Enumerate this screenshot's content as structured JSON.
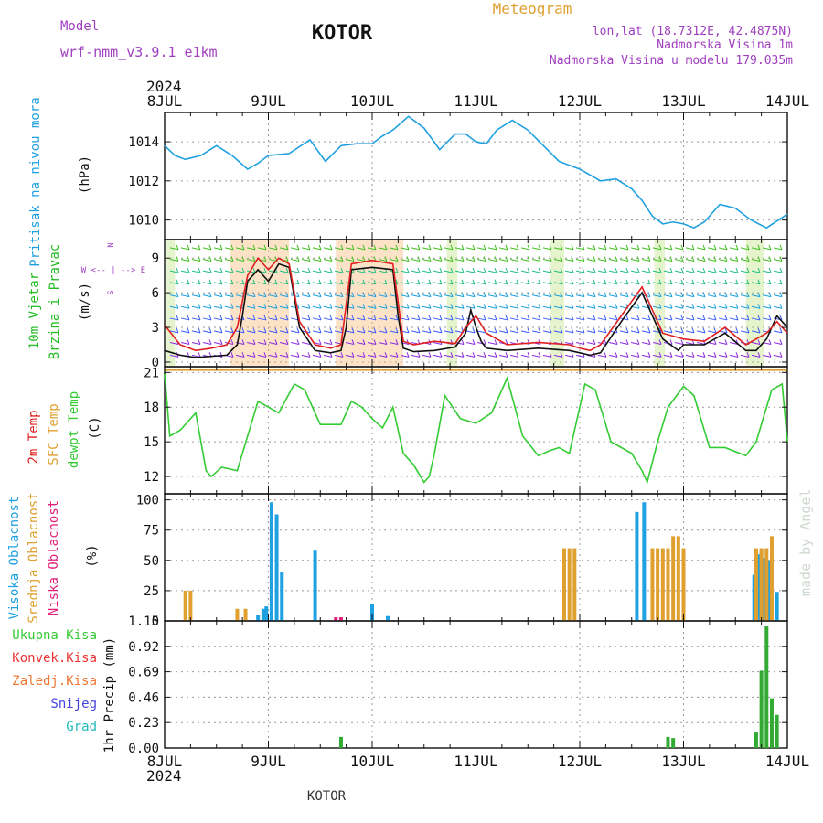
{
  "header": {
    "model_label": "Model",
    "model_name": "wrf-nmm_v3.9.1  e1km",
    "city": "KOTOR",
    "title": "Meteogram",
    "coords": "lon,lat (18.7312E, 42.4875N)",
    "altitude": "Nadmorska Visina 1m",
    "model_altitude": "Nadmorska Visina u modelu 179.035m",
    "year_top": "2024",
    "year_bottom": "2024",
    "footer_city": "KOTOR",
    "credit": "made by Angel"
  },
  "days": [
    "8JUL",
    "9JUL",
    "10JUL",
    "11JUL",
    "12JUL",
    "13JUL",
    "14JUL"
  ],
  "colors": {
    "pressure": "#1fa0e0",
    "wind_label": "#22bb22",
    "wind_ms": "#111111",
    "temp_2m": "#e02020",
    "temp_sfc": "#e0a030",
    "dewpoint": "#33cc33",
    "cloud_high": "#1fa0e0",
    "cloud_mid": "#e0a030",
    "cloud_low": "#e0207a",
    "precip_total": "#33aa33",
    "precip_conv": "#ee3333",
    "precip_frozen": "#ee7733",
    "snow": "#4444dd",
    "hail": "#22bbbb",
    "header_purple": "#a040c0",
    "header_orange": "#e0a030"
  },
  "chart_data": [
    {
      "type": "line",
      "panel": "pressure",
      "ylabel": [
        "Pritisak na nivou mora",
        "(hPa)"
      ],
      "ylim": [
        1009,
        1015.5
      ],
      "yticks": [
        1010,
        1012,
        1014
      ],
      "grid": true,
      "series": [
        {
          "color_key": "pressure",
          "x": [
            0,
            0.1,
            0.2,
            0.35,
            0.5,
            0.65,
            0.8,
            0.9,
            1.0,
            1.2,
            1.4,
            1.55,
            1.7,
            1.85,
            2.0,
            2.1,
            2.2,
            2.35,
            2.5,
            2.65,
            2.8,
            2.9,
            3.0,
            3.1,
            3.2,
            3.35,
            3.5,
            3.65,
            3.8,
            4.0,
            4.2,
            4.35,
            4.5,
            4.6,
            4.7,
            4.8,
            4.9,
            5.0,
            5.1,
            5.2,
            5.35,
            5.5,
            5.65,
            5.8,
            6.0
          ],
          "y": [
            1013.8,
            1013.3,
            1013.1,
            1013.3,
            1013.8,
            1013.3,
            1012.6,
            1012.9,
            1013.3,
            1013.4,
            1014.1,
            1013.0,
            1013.8,
            1013.9,
            1013.9,
            1014.3,
            1014.6,
            1015.3,
            1014.7,
            1013.6,
            1014.4,
            1014.4,
            1014.0,
            1013.9,
            1014.6,
            1015.1,
            1014.6,
            1013.8,
            1013.0,
            1012.6,
            1012.0,
            1012.1,
            1011.6,
            1011.0,
            1010.2,
            1009.8,
            1009.9,
            1009.8,
            1009.6,
            1009.9,
            1010.8,
            1010.6,
            1010.0,
            1009.6,
            1010.3
          ]
        }
      ]
    },
    {
      "type": "line",
      "panel": "wind",
      "ylabel": [
        "10m Vjetar",
        "Brzina i Pravac",
        "(m/s)"
      ],
      "direction_key": [
        "N",
        "W  <-- | -->  E",
        "S"
      ],
      "ylim": [
        -0.4,
        10.6
      ],
      "yticks": [
        0,
        3,
        6,
        9
      ],
      "grid": true,
      "series": [
        {
          "color_key": "wind_ms",
          "x": [
            0,
            0.15,
            0.3,
            0.45,
            0.6,
            0.7,
            0.75,
            0.8,
            0.9,
            1.0,
            1.1,
            1.2,
            1.3,
            1.45,
            1.6,
            1.7,
            1.75,
            1.8,
            2.0,
            2.2,
            2.25,
            2.3,
            2.4,
            2.6,
            2.8,
            2.9,
            2.95,
            3.0,
            3.05,
            3.1,
            3.3,
            3.6,
            3.9,
            4.0,
            4.1,
            4.2,
            4.4,
            4.6,
            4.8,
            4.95,
            5.0,
            5.2,
            5.4,
            5.6,
            5.7,
            5.8,
            5.9,
            6.0
          ],
          "y": [
            1.0,
            0.6,
            0.4,
            0.5,
            0.6,
            1.5,
            4.0,
            7.0,
            8.0,
            7.0,
            8.5,
            8.2,
            3.0,
            1.0,
            0.8,
            1.0,
            3.0,
            8.0,
            8.2,
            8.0,
            4.0,
            1.2,
            0.9,
            1.0,
            1.3,
            2.5,
            4.5,
            3.0,
            1.8,
            1.2,
            1.0,
            1.2,
            1.0,
            0.8,
            0.6,
            0.8,
            3.5,
            6.0,
            2.0,
            1.0,
            1.5,
            1.5,
            2.5,
            1.0,
            1.0,
            2.0,
            4.0,
            3.0
          ]
        },
        {
          "color_key": "temp_2m",
          "x": [
            0,
            0.15,
            0.3,
            0.45,
            0.6,
            0.7,
            0.8,
            0.9,
            1.0,
            1.1,
            1.2,
            1.3,
            1.45,
            1.6,
            1.7,
            1.8,
            2.0,
            2.2,
            2.3,
            2.4,
            2.6,
            2.8,
            2.9,
            3.0,
            3.1,
            3.3,
            3.6,
            3.9,
            4.0,
            4.1,
            4.2,
            4.4,
            4.6,
            4.8,
            5.0,
            5.2,
            5.4,
            5.6,
            5.8,
            5.9,
            6.0
          ],
          "y": [
            3.2,
            1.5,
            1.0,
            1.2,
            1.5,
            3.0,
            7.5,
            9.0,
            8.0,
            9.0,
            8.5,
            3.5,
            1.5,
            1.2,
            1.5,
            8.5,
            8.8,
            8.5,
            1.8,
            1.5,
            1.8,
            1.6,
            3.0,
            4.0,
            2.5,
            1.5,
            1.7,
            1.5,
            1.2,
            1.0,
            1.5,
            4.0,
            6.5,
            2.5,
            2.0,
            1.8,
            3.0,
            1.5,
            2.5,
            3.5,
            2.5
          ]
        }
      ]
    },
    {
      "type": "line",
      "panel": "temperature",
      "ylabel": [
        "2m Temp",
        "SFC Temp",
        "dewpt Temp",
        "(C)"
      ],
      "ylim": [
        10.5,
        21.5
      ],
      "yticks": [
        12,
        15,
        18,
        21
      ],
      "grid": true,
      "series": [
        {
          "color_key": "temp_sfc",
          "x": [
            0,
            6.0
          ],
          "y": [
            21.2,
            21.2
          ]
        },
        {
          "color_key": "dewpoint",
          "x": [
            0,
            0.05,
            0.15,
            0.25,
            0.3,
            0.35,
            0.4,
            0.45,
            0.55,
            0.7,
            0.8,
            0.9,
            1.0,
            1.1,
            1.25,
            1.35,
            1.5,
            1.7,
            1.8,
            1.9,
            2.0,
            2.1,
            2.2,
            2.3,
            2.4,
            2.5,
            2.55,
            2.6,
            2.7,
            2.85,
            3.0,
            3.15,
            3.3,
            3.45,
            3.6,
            3.7,
            3.8,
            3.9,
            4.0,
            4.05,
            4.15,
            4.3,
            4.5,
            4.6,
            4.65,
            4.75,
            4.85,
            5.0,
            5.1,
            5.25,
            5.4,
            5.6,
            5.7,
            5.85,
            5.95,
            6.0
          ],
          "y": [
            21.0,
            15.5,
            16.0,
            17.0,
            17.5,
            15.0,
            12.5,
            12.0,
            12.8,
            12.5,
            15.5,
            18.5,
            18.0,
            17.5,
            20.0,
            19.5,
            16.5,
            16.5,
            18.5,
            18.0,
            17.0,
            16.2,
            18.0,
            14.0,
            13.0,
            11.5,
            12.0,
            14.0,
            19.0,
            17.0,
            16.6,
            17.5,
            20.5,
            15.5,
            13.8,
            14.2,
            14.5,
            14.0,
            18.0,
            20.0,
            19.5,
            15.0,
            14.0,
            12.5,
            11.5,
            15.0,
            18.0,
            19.8,
            19.0,
            14.5,
            14.5,
            13.8,
            15.0,
            19.5,
            20.0,
            15.0
          ]
        }
      ]
    },
    {
      "type": "bar",
      "panel": "clouds",
      "ylabel": [
        "Visoka Oblacnost",
        "Srednja Oblacnost",
        "Niska Oblacnost",
        "(%)"
      ],
      "ylim": [
        0,
        105
      ],
      "yticks": [
        0,
        25,
        50,
        75,
        100
      ],
      "grid": true,
      "series": [
        {
          "color_key": "cloud_high",
          "x": [
            0.9,
            0.95,
            0.98,
            1.03,
            1.08,
            1.13,
            1.45,
            2.0,
            2.15,
            4.55,
            4.62,
            5.68,
            5.72,
            5.75,
            5.78,
            5.82,
            5.85,
            5.9
          ],
          "y": [
            5,
            10,
            12,
            98,
            88,
            40,
            58,
            14,
            4,
            90,
            98,
            38,
            55,
            58,
            52,
            50,
            48,
            24
          ]
        },
        {
          "color_key": "cloud_mid",
          "x": [
            0.2,
            0.25,
            0.7,
            0.78,
            3.85,
            3.9,
            3.95,
            4.7,
            4.75,
            4.8,
            4.85,
            4.9,
            4.95,
            5.0,
            5.7,
            5.75,
            5.8,
            5.85
          ],
          "y": [
            25,
            25,
            10,
            10,
            60,
            60,
            60,
            60,
            60,
            60,
            60,
            70,
            70,
            60,
            60,
            60,
            60,
            70
          ]
        },
        {
          "color_key": "cloud_low",
          "x": [
            1.65,
            1.7
          ],
          "y": [
            3,
            3
          ]
        }
      ]
    },
    {
      "type": "bar",
      "panel": "precipitation",
      "ylabel": [
        "1hr Precip (mm)"
      ],
      "legend": [
        "Ukupna  Kisa",
        "Konvek.Kisa",
        "Zaledj.Kisa",
        "Snijeg",
        "Grad"
      ],
      "ylim": [
        0,
        1.15
      ],
      "yticks": [
        0,
        0.23,
        0.46,
        0.69,
        0.92,
        1.15
      ],
      "grid": true,
      "series": [
        {
          "color_key": "precip_total",
          "x": [
            1.7,
            4.85,
            4.9,
            5.7,
            5.75,
            5.8,
            5.85,
            5.9
          ],
          "y": [
            0.1,
            0.1,
            0.09,
            0.14,
            0.7,
            1.1,
            0.45,
            0.3
          ]
        }
      ]
    }
  ]
}
